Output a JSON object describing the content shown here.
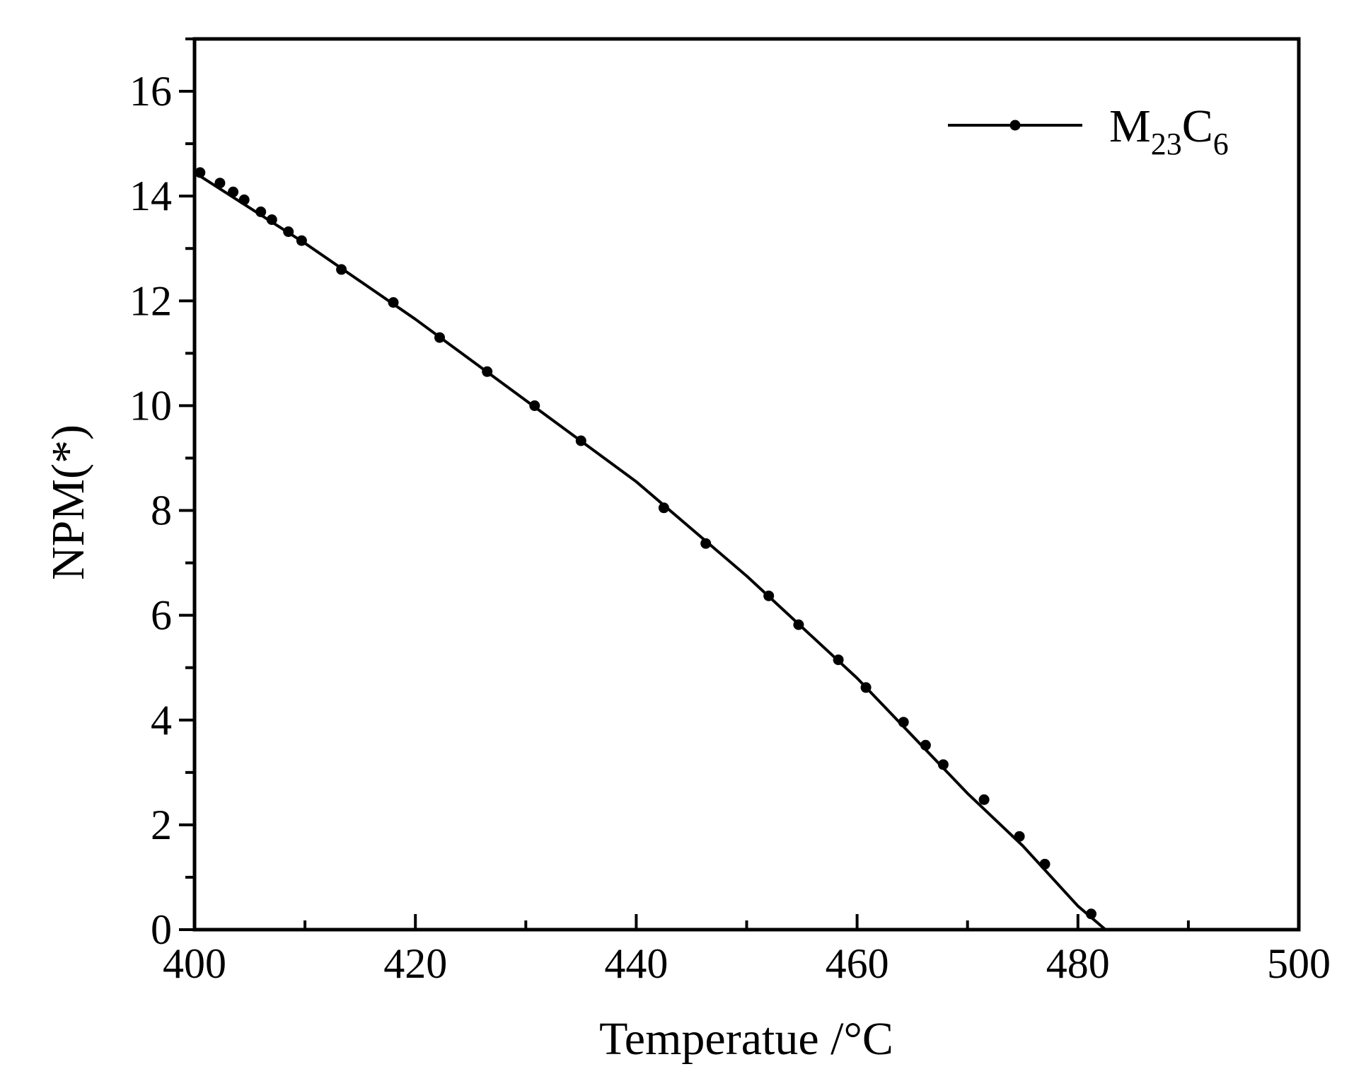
{
  "chart_data": {
    "type": "line",
    "xlabel": "Temperatue /°C",
    "ylabel": "NPM(*)",
    "xlim": [
      400,
      500
    ],
    "ylim": [
      0,
      17
    ],
    "x_ticks": [
      400,
      420,
      440,
      460,
      480,
      500
    ],
    "y_ticks": [
      0,
      2,
      4,
      6,
      8,
      10,
      12,
      14,
      16
    ],
    "x_minor_step": 10,
    "y_minor_step": 1,
    "grid": false,
    "legend_position": "top-right",
    "legend": {
      "base": "M",
      "sub1": "23",
      "mid": "C",
      "sub2": "6"
    },
    "line_color": "#000000",
    "series": [
      {
        "line_x": [
          400,
          410,
          420,
          430,
          440,
          450,
          460,
          470,
          475,
          480,
          482.5
        ],
        "line_y": [
          14.45,
          13.1,
          11.65,
          10.1,
          8.55,
          6.75,
          4.8,
          2.6,
          1.6,
          0.45,
          0.0
        ],
        "points": [
          [
            400.5,
            14.45
          ],
          [
            402.3,
            14.25
          ],
          [
            403.5,
            14.08
          ],
          [
            404.5,
            13.93
          ],
          [
            406.0,
            13.7
          ],
          [
            407.0,
            13.55
          ],
          [
            408.5,
            13.32
          ],
          [
            409.7,
            13.15
          ],
          [
            413.3,
            12.6
          ],
          [
            418.0,
            11.97
          ],
          [
            422.2,
            11.3
          ],
          [
            426.5,
            10.65
          ],
          [
            430.8,
            10.0
          ],
          [
            435.0,
            9.33
          ],
          [
            442.5,
            8.05
          ],
          [
            446.3,
            7.37
          ],
          [
            452.0,
            6.37
          ],
          [
            454.7,
            5.82
          ],
          [
            458.3,
            5.15
          ],
          [
            460.8,
            4.62
          ],
          [
            464.2,
            3.96
          ],
          [
            466.2,
            3.52
          ],
          [
            467.8,
            3.15
          ],
          [
            471.5,
            2.48
          ],
          [
            474.7,
            1.78
          ],
          [
            477.0,
            1.25
          ],
          [
            481.2,
            0.3
          ]
        ]
      }
    ]
  }
}
